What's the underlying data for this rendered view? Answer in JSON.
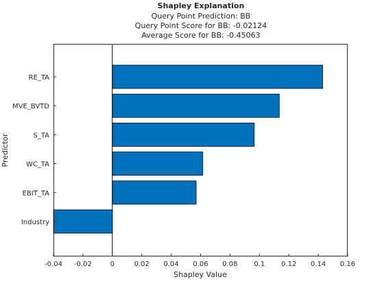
{
  "chart_data": {
    "type": "bar",
    "orientation": "horizontal",
    "title": "Shapley Explanation",
    "subtitle_lines": [
      "Query Point Prediction: BB",
      "Query Point Score for BB: -0.02124",
      "Average Score for BB: -0.45063"
    ],
    "xlabel": "Shapley Value",
    "ylabel": "Predictor",
    "categories": [
      "RE_TA",
      "MVE_BVTD",
      "S_TA",
      "WC_TA",
      "EBIT_TA",
      "Industry"
    ],
    "values": [
      0.143,
      0.1135,
      0.0965,
      0.0615,
      0.057,
      -0.04
    ],
    "xlim": [
      -0.04,
      0.16
    ],
    "xticks": [
      -0.04,
      -0.02,
      0,
      0.02,
      0.04,
      0.06,
      0.08,
      0.1,
      0.12,
      0.14,
      0.16
    ],
    "xtick_labels": [
      "-0.04",
      "-0.02",
      "0",
      "0.02",
      "0.04",
      "0.06",
      "0.08",
      "0.1",
      "0.12",
      "0.14",
      "0.16"
    ],
    "bar_color": "#0072bd",
    "grid": false,
    "legend": "none"
  }
}
